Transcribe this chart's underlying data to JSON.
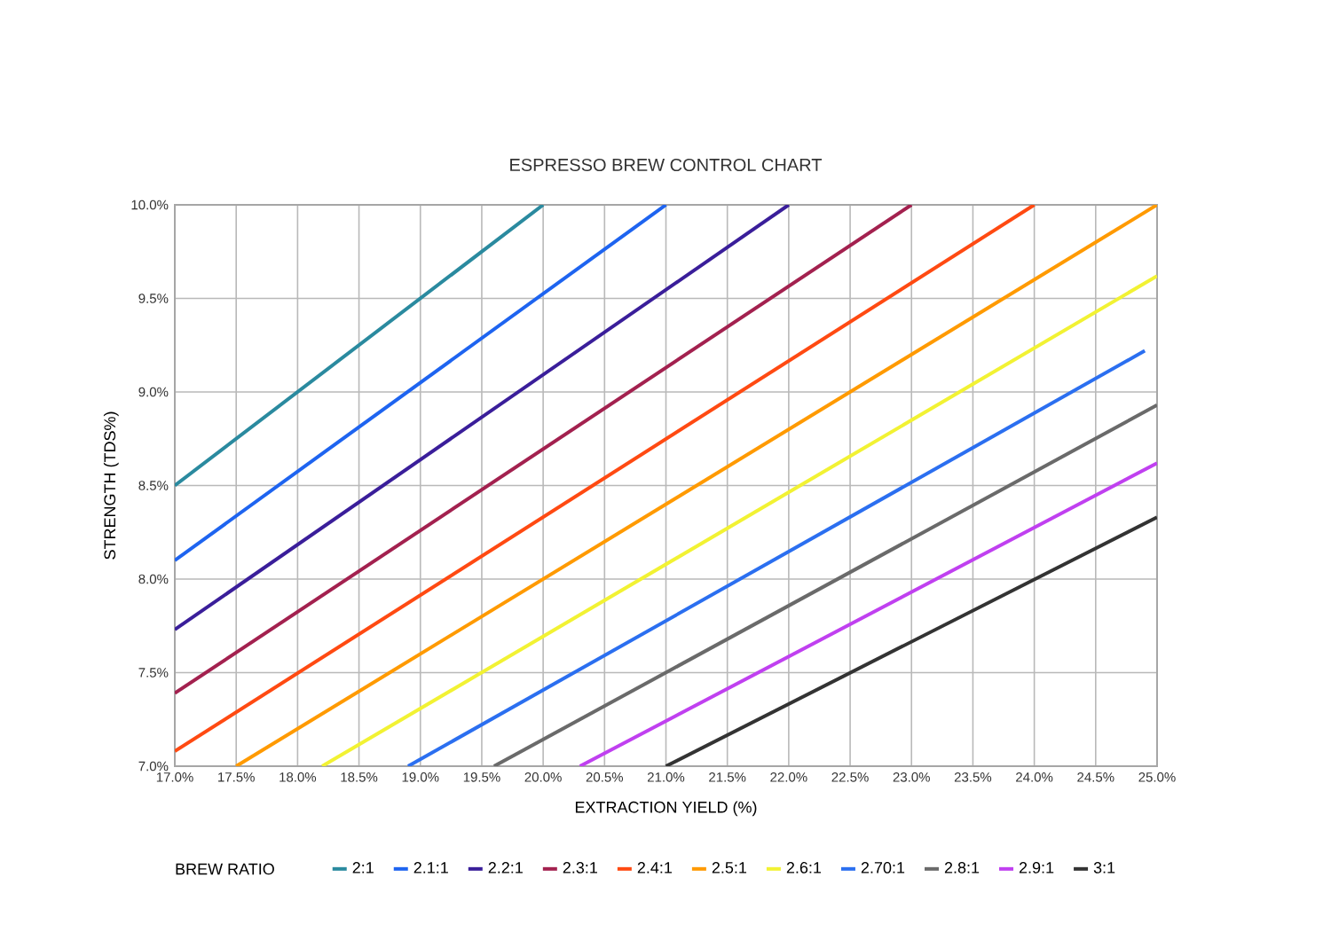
{
  "chart_data": {
    "type": "line",
    "title": "ESPRESSO BREW CONTROL CHART",
    "xlabel": "EXTRACTION YIELD (%)",
    "ylabel": "STRENGTH (TDS%)",
    "legend_title": "BREW RATIO",
    "legend": "bottom",
    "grid": true,
    "line_style": "solid",
    "xlim": [
      17.0,
      25.0
    ],
    "xticks": [
      {
        "value": 17.0,
        "label": "17.0%"
      },
      {
        "value": 17.5,
        "label": "17.5%"
      },
      {
        "value": 18.0,
        "label": "18.0%"
      },
      {
        "value": 18.5,
        "label": "18.5%"
      },
      {
        "value": 19.0,
        "label": "19.0%"
      },
      {
        "value": 19.5,
        "label": "19.5%"
      },
      {
        "value": 20.0,
        "label": "20.0%"
      },
      {
        "value": 20.5,
        "label": "20.5%"
      },
      {
        "value": 21.0,
        "label": "21.0%"
      },
      {
        "value": 21.5,
        "label": "21.5%"
      },
      {
        "value": 22.0,
        "label": "22.0%"
      },
      {
        "value": 22.5,
        "label": "22.5%"
      },
      {
        "value": 23.0,
        "label": "23.0%"
      },
      {
        "value": 23.5,
        "label": "23.5%"
      },
      {
        "value": 24.0,
        "label": "24.0%"
      },
      {
        "value": 24.5,
        "label": "24.5%"
      },
      {
        "value": 25.0,
        "label": "25.0%"
      }
    ],
    "ylim": [
      7.0,
      10.0
    ],
    "yticks": [
      {
        "value": 7.0,
        "label": "7.0%"
      },
      {
        "value": 7.5,
        "label": "7.5%"
      },
      {
        "value": 8.0,
        "label": "8.0%"
      },
      {
        "value": 8.5,
        "label": "8.5%"
      },
      {
        "value": 9.0,
        "label": "9.0%"
      },
      {
        "value": 9.5,
        "label": "9.5%"
      },
      {
        "value": 10.0,
        "label": "10.0%"
      }
    ],
    "series": [
      {
        "name": "2:1",
        "color": "#2a8a9f",
        "x": [
          17.0,
          20.0
        ],
        "values": [
          8.5,
          10.0
        ]
      },
      {
        "name": "2.1:1",
        "color": "#1e64f0",
        "x": [
          17.0,
          21.0
        ],
        "values": [
          8.1,
          10.0
        ]
      },
      {
        "name": "2.2:1",
        "color": "#3a1e9a",
        "x": [
          17.0,
          22.0
        ],
        "values": [
          7.73,
          10.0
        ]
      },
      {
        "name": "2.3:1",
        "color": "#a3214f",
        "x": [
          17.0,
          23.0
        ],
        "values": [
          7.39,
          10.0
        ]
      },
      {
        "name": "2.4:1",
        "color": "#ff4a12",
        "x": [
          17.0,
          24.0
        ],
        "values": [
          7.08,
          10.0
        ]
      },
      {
        "name": "2.5:1",
        "color": "#ff9a00",
        "x": [
          17.5,
          25.0
        ],
        "values": [
          7.0,
          10.0
        ]
      },
      {
        "name": "2.6:1",
        "color": "#f2f233",
        "x": [
          18.2,
          25.0
        ],
        "values": [
          7.0,
          9.62
        ]
      },
      {
        "name": "2.70:1",
        "color": "#2b6ff0",
        "x": [
          18.9,
          24.9
        ],
        "values": [
          7.0,
          9.22
        ]
      },
      {
        "name": "2.8:1",
        "color": "#6a6a6a",
        "x": [
          19.6,
          25.0
        ],
        "values": [
          7.0,
          8.93
        ]
      },
      {
        "name": "2.9:1",
        "color": "#c040f0",
        "x": [
          20.3,
          25.0
        ],
        "values": [
          7.0,
          8.62
        ]
      },
      {
        "name": "3:1",
        "color": "#333333",
        "x": [
          21.0,
          25.0
        ],
        "values": [
          7.0,
          8.33
        ]
      }
    ]
  }
}
